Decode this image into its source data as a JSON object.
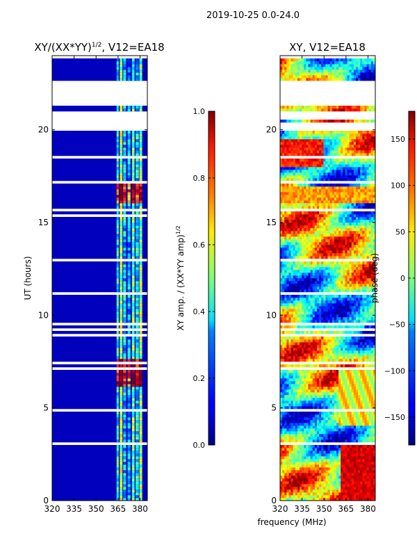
{
  "suptitle": "2019-10-25 0.0-24.0",
  "xlabel": "frequency (MHz)",
  "chart_data": [
    {
      "type": "heatmap",
      "title_main": "XY/(XX*YY)",
      "title_sup": "1/2",
      "title_tail": ", V12=EA18",
      "ylabel": "UT (hours)",
      "xlim": [
        320,
        385
      ],
      "ylim": [
        0,
        24
      ],
      "xticks": [
        "320",
        "335",
        "350",
        "365",
        "380"
      ],
      "xtick_values": [
        320,
        335,
        350,
        365,
        380
      ],
      "yticks": [
        "0",
        "5",
        "10",
        "15",
        "20"
      ],
      "ytick_values": [
        0,
        5,
        10,
        15,
        20
      ],
      "colorbar": {
        "label_main": "XY amp. / (XX*YY amp)",
        "label_sup": "1/2",
        "range": [
          0,
          1
        ],
        "ticks": [
          "0.0",
          "0.2",
          "0.4",
          "0.6",
          "0.8",
          "1.0"
        ],
        "tick_values": [
          0,
          0.2,
          0.4,
          0.6,
          0.8,
          1.0
        ]
      }
    },
    {
      "type": "heatmap",
      "title": "XY, V12=EA18",
      "xlim": [
        320,
        385
      ],
      "ylim": [
        0,
        24
      ],
      "xticks": [
        "320",
        "335",
        "350",
        "365",
        "380"
      ],
      "xtick_values": [
        320,
        335,
        350,
        365,
        380
      ],
      "yticks": [
        "0",
        "5",
        "10",
        "15",
        "20"
      ],
      "ytick_values": [
        0,
        5,
        10,
        15,
        20
      ],
      "colorbar": {
        "label": "phase (deg)",
        "range": [
          -180,
          180
        ],
        "ticks": [
          "−150",
          "−100",
          "−50",
          "0",
          "50",
          "100",
          "150"
        ],
        "tick_values": [
          -150,
          -100,
          -50,
          0,
          50,
          100,
          150
        ]
      }
    }
  ]
}
